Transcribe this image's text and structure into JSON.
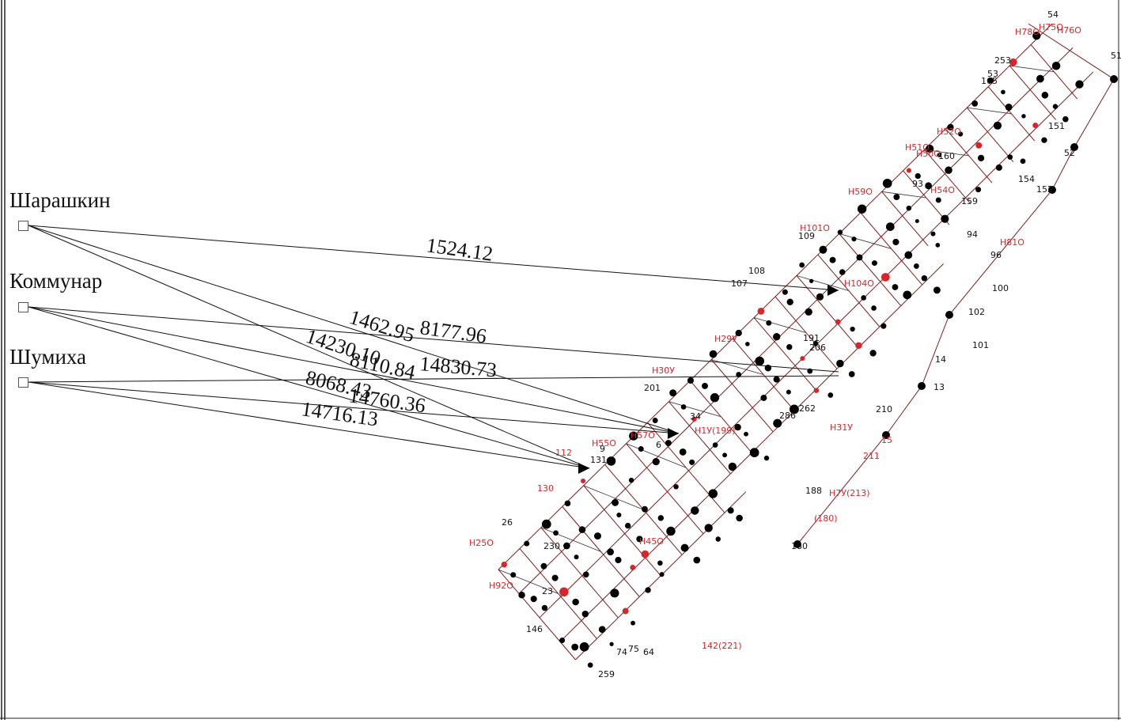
{
  "stations": [
    {
      "name": "Шарашкин"
    },
    {
      "name": "Коммунар"
    },
    {
      "name": "Шумиха"
    }
  ],
  "distances": [
    {
      "from": "Шарашкин",
      "value": "1524.12"
    },
    {
      "from": "Шарашкин",
      "value": "14230.10"
    },
    {
      "from": "Шарашкин",
      "value": "8110.84"
    },
    {
      "from": "Коммунар",
      "value": "1462.95"
    },
    {
      "from": "Коммунар",
      "value": "8177.96"
    },
    {
      "from": "Коммунар",
      "value": "14760.36"
    },
    {
      "from": "Шумиха",
      "value": "14830.73"
    },
    {
      "from": "Шумиха",
      "value": "8068.43"
    },
    {
      "from": "Шумиха",
      "value": "14716.13"
    }
  ],
  "network_labels_black": [
    "54",
    "51",
    "53",
    "253",
    "165",
    "151",
    "52",
    "152",
    "160",
    "154",
    "159",
    "93",
    "94",
    "96",
    "100",
    "101",
    "102",
    "108",
    "107",
    "109",
    "14",
    "13",
    "206",
    "191",
    "210",
    "201",
    "34",
    "6",
    "9",
    "131",
    "26",
    "230",
    "23",
    "146",
    "259",
    "64",
    "75",
    "74",
    "180",
    "188",
    "262",
    "286"
  ],
  "network_labels_red": [
    "Н78О",
    "Н75О",
    "Н76О",
    "Н51О",
    "Н50О",
    "Н52О",
    "Н59О",
    "Н54О",
    "Н81О",
    "Н101О",
    "Н104О",
    "Н30У",
    "Н29У",
    "Н31У",
    "Н7У(213)",
    "Н1У(199)",
    "Н55О",
    "Н57О",
    "Н92О",
    "112",
    "130",
    "211",
    "15",
    "142(221)",
    "(180)",
    "Н45О",
    "H25О"
  ],
  "colors": {
    "line": "#7a1e1e",
    "node": "#000000",
    "red_label": "#d6262b",
    "black_label": "#111111"
  }
}
